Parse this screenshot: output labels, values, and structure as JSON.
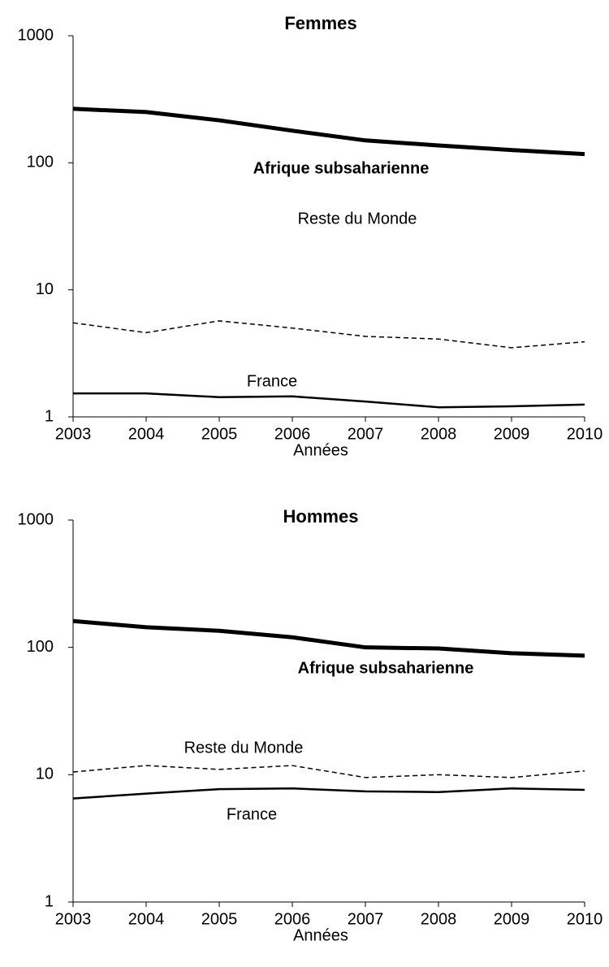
{
  "chart_data": [
    {
      "type": "line",
      "title": "Femmes",
      "xlabel": "Années",
      "x": [
        2003,
        2004,
        2005,
        2006,
        2007,
        2008,
        2009,
        2010
      ],
      "xlim": [
        2003,
        2010
      ],
      "xticks": [
        2003,
        2004,
        2005,
        2006,
        2007,
        2008,
        2009,
        2010
      ],
      "ylim": [
        1,
        1000
      ],
      "yticks": [
        1,
        10,
        100,
        1000
      ],
      "yscale": "log",
      "series": [
        {
          "name": "Afrique subsaharienne",
          "color": "#000000",
          "width": 5,
          "dash": "solid",
          "bold": true,
          "values": [
            266,
            251,
            216,
            179,
            150,
            137,
            126,
            117
          ]
        },
        {
          "name": "Reste du Monde",
          "color": "#000000",
          "width": 1.5,
          "dash": "dashed",
          "bold": false,
          "values": [
            5.5,
            4.6,
            5.7,
            5.0,
            4.3,
            4.1,
            3.5,
            3.9
          ]
        },
        {
          "name": "France",
          "color": "#000000",
          "width": 2.5,
          "dash": "solid",
          "bold": false,
          "values": [
            1.53,
            1.53,
            1.43,
            1.45,
            1.32,
            1.19,
            1.21,
            1.25
          ]
        }
      ]
    },
    {
      "type": "line",
      "title": "Hommes",
      "xlabel": "Années",
      "x": [
        2003,
        2004,
        2005,
        2006,
        2007,
        2008,
        2009,
        2010
      ],
      "xlim": [
        2003,
        2010
      ],
      "xticks": [
        2003,
        2004,
        2005,
        2006,
        2007,
        2008,
        2009,
        2010
      ],
      "ylim": [
        1,
        1000
      ],
      "yticks": [
        1,
        10,
        100,
        1000
      ],
      "yscale": "log",
      "series": [
        {
          "name": "Afrique subsaharienne",
          "color": "#000000",
          "width": 5,
          "dash": "solid",
          "bold": true,
          "values": [
            161,
            144,
            135,
            120,
            100,
            98,
            90,
            86
          ]
        },
        {
          "name": "Reste du Monde",
          "color": "#000000",
          "width": 1.5,
          "dash": "dashed",
          "bold": false,
          "values": [
            10.5,
            11.8,
            11,
            11.8,
            9.5,
            10,
            9.5,
            10.7
          ]
        },
        {
          "name": "France",
          "color": "#000000",
          "width": 2.5,
          "dash": "solid",
          "bold": false,
          "values": [
            6.5,
            7.1,
            7.7,
            7.8,
            7.4,
            7.3,
            7.8,
            7.6
          ]
        }
      ]
    }
  ]
}
